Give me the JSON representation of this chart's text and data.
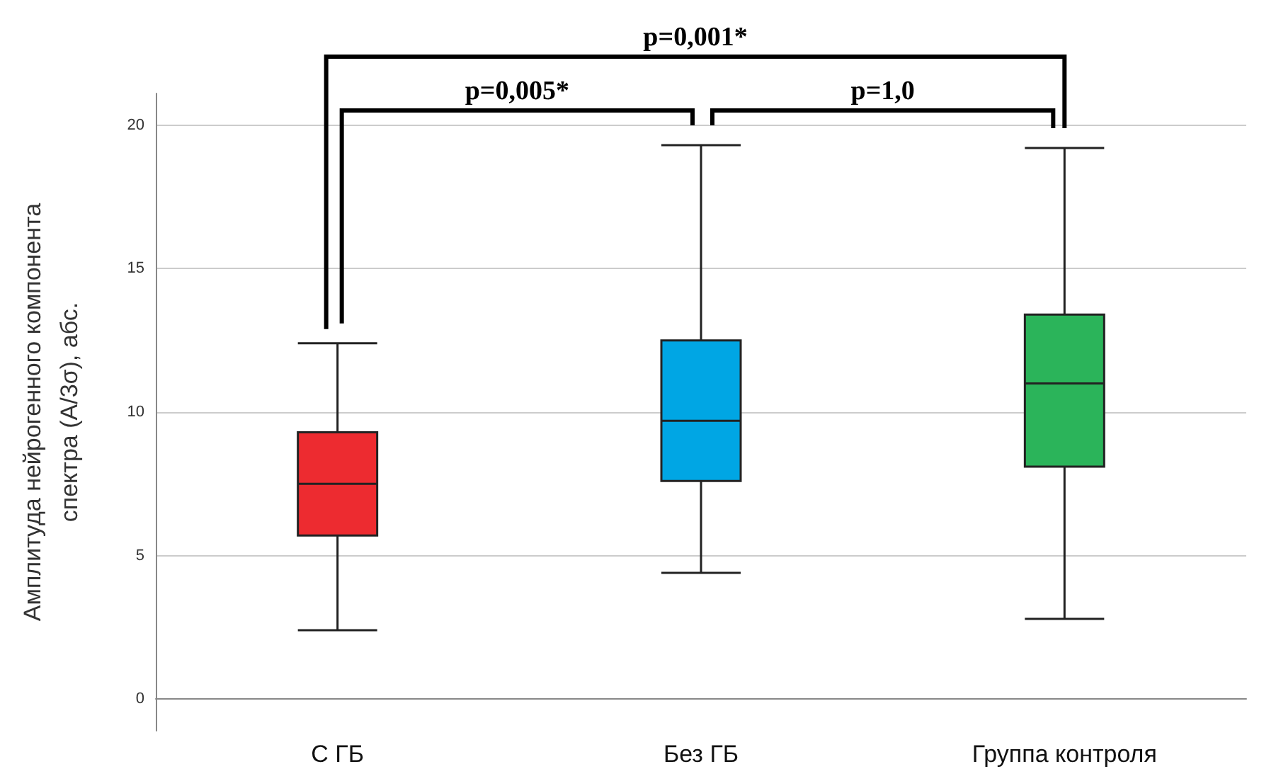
{
  "chart_data": {
    "type": "box",
    "ylabel": "Амплитуда нейрогенного компонента\nспектра (А/3σ), абс.",
    "categories": [
      "С ГБ",
      "Без ГБ",
      "Группа контроля"
    ],
    "colors": [
      "#ed2b30",
      "#00a6e4",
      "#2bb45a"
    ],
    "boxes": [
      {
        "low": 2.4,
        "q1": 5.7,
        "median": 7.5,
        "q3": 9.3,
        "high": 12.4
      },
      {
        "low": 4.4,
        "q1": 7.6,
        "median": 9.7,
        "q3": 12.5,
        "high": 19.3
      },
      {
        "low": 2.8,
        "q1": 8.1,
        "median": 11,
        "q3": 13.4,
        "high": 19.2
      }
    ],
    "ylim": [
      -1.1,
      21.1
    ],
    "yticks": [
      0,
      5,
      10,
      15,
      20
    ],
    "grid": "y",
    "annotations": [
      "p=0,001*",
      "p=0,005*",
      "p=1,0"
    ]
  }
}
